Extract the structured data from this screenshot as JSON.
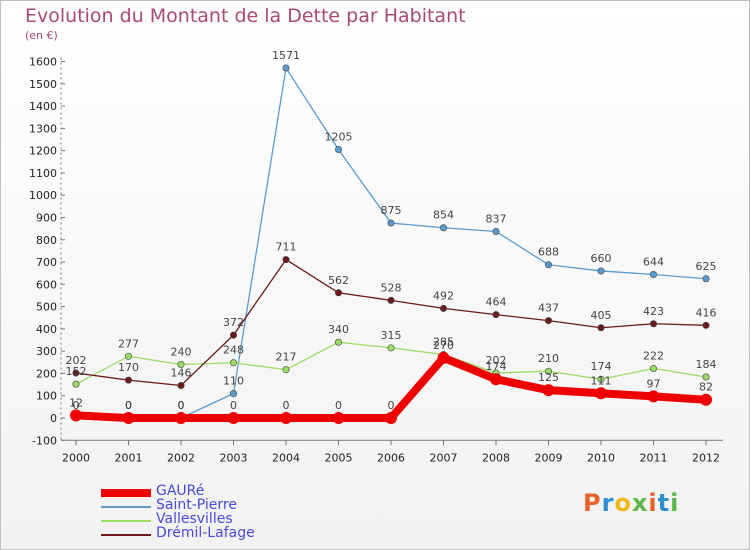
{
  "header": {
    "title": "Evolution du Montant de la Dette par Habitant",
    "subtitle": "(en €)"
  },
  "logo": {
    "text": "Proxiti",
    "colors": [
      "#e8622a",
      "#2d8fd0",
      "#f0b81a",
      "#5bb84a",
      "#e8622a",
      "#2d8fd0",
      "#5bb84a"
    ]
  },
  "chart_data": {
    "type": "line",
    "title": "Evolution du Montant de la Dette par Habitant",
    "subtitle": "(en €)",
    "xlabel": "",
    "ylabel": "",
    "x": [
      "2000",
      "2001",
      "2002",
      "2003",
      "2004",
      "2005",
      "2006",
      "2007",
      "2008",
      "2009",
      "2010",
      "2011",
      "2012"
    ],
    "ylim": [
      -100,
      1600
    ],
    "yticks": [
      "-100",
      "0",
      "100",
      "200",
      "300",
      "400",
      "500",
      "600",
      "700",
      "800",
      "900",
      "1000",
      "1100",
      "1200",
      "1300",
      "1400",
      "1500",
      "1600"
    ],
    "grid": false,
    "legend": "bottom-left",
    "series": [
      {
        "name": "GAURé",
        "color": "#ee0000",
        "values": [
          12,
          0,
          0,
          0,
          0,
          0,
          0,
          270,
          174,
          125,
          111,
          97,
          82
        ],
        "labels": [
          "12",
          "0",
          "0",
          "0",
          "0",
          "0",
          "0",
          "270",
          "174",
          "125",
          "111",
          "97",
          "82"
        ]
      },
      {
        "name": "Saint-Pierre",
        "color": "#5b9bcf",
        "values": [
          0,
          0,
          0,
          110,
          1571,
          1205,
          875,
          854,
          837,
          688,
          660,
          644,
          625
        ],
        "labels": [
          "0",
          "0",
          "0",
          "110",
          "1571",
          "1205",
          "875",
          "854",
          "837",
          "688",
          "660",
          "644",
          "625"
        ]
      },
      {
        "name": "Vallesvilles",
        "color": "#99dd66",
        "values": [
          152,
          277,
          240,
          248,
          217,
          340,
          315,
          285,
          202,
          210,
          174,
          222,
          184
        ],
        "labels": [
          "152",
          "277",
          "240",
          "248",
          "217",
          "340",
          "315",
          "285",
          "202",
          "210",
          "174",
          "222",
          "184"
        ]
      },
      {
        "name": "Drémil-Lafage",
        "color": "#6b1a1a",
        "values": [
          202,
          170,
          146,
          372,
          711,
          562,
          528,
          492,
          464,
          437,
          405,
          423,
          416
        ],
        "labels": [
          "202",
          "170",
          "146",
          "372",
          "711",
          "562",
          "528",
          "492",
          "464",
          "437",
          "405",
          "423",
          "416"
        ]
      }
    ]
  }
}
